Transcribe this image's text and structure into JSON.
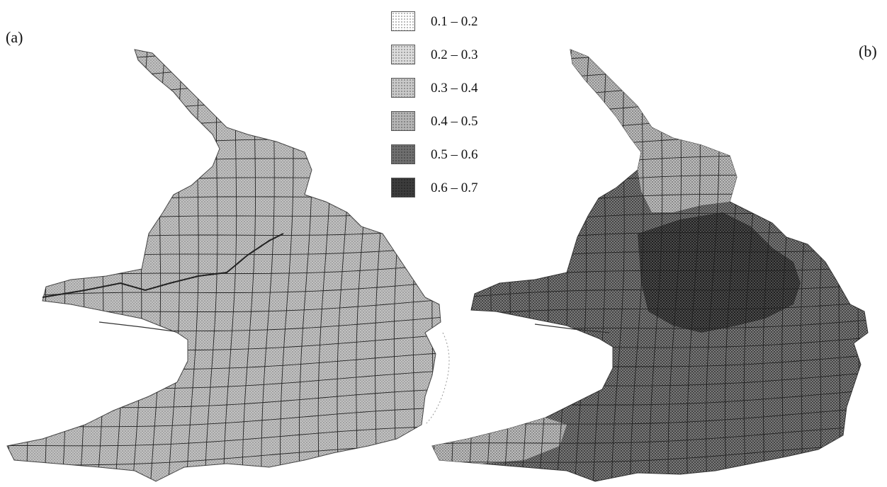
{
  "panels": [
    {
      "label": "(a)"
    },
    {
      "label": "(b)"
    }
  ],
  "legend": {
    "title": "",
    "classes": [
      {
        "range": "0.1 – 0.2",
        "color": "#ffffff"
      },
      {
        "range": "0.2 – 0.3",
        "color": "#dcdcdc"
      },
      {
        "range": "0.3 – 0.4",
        "color": "#c9c9c9"
      },
      {
        "range": "0.4 – 0.5",
        "color": "#b5b5b5"
      },
      {
        "range": "0.5 – 0.6",
        "color": "#6f6f6f"
      },
      {
        "range": "0.6 – 0.7",
        "color": "#3c3c3c"
      }
    ]
  },
  "colors": {
    "grid_line": "#222222",
    "outline": "#333333"
  }
}
